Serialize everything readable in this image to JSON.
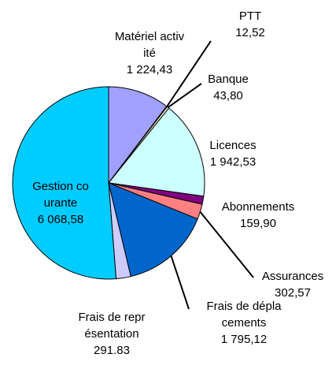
{
  "chart_data": {
    "type": "pie",
    "categories": [
      "Matériel activité",
      "PTT",
      "Banque",
      "Licences",
      "Abonnements",
      "Assurances",
      "Frais de déplacements",
      "Frais de représentation",
      "Gestion courante"
    ],
    "values": [
      1224.43,
      12.52,
      43.8,
      1942.53,
      159.9,
      302.57,
      1795.12,
      291.83,
      6068.58
    ],
    "value_labels": [
      "1 224,43",
      "12,52",
      "43,80",
      "1 942,53",
      "159,90",
      "302,57",
      "1 795,12",
      "291.83",
      "6 068,58"
    ],
    "colors": [
      "#a0a0ff",
      "#993366",
      "#ffffcc",
      "#ccffff",
      "#800080",
      "#ff8080",
      "#0066cc",
      "#ccccff",
      "#00ccff"
    ]
  }
}
